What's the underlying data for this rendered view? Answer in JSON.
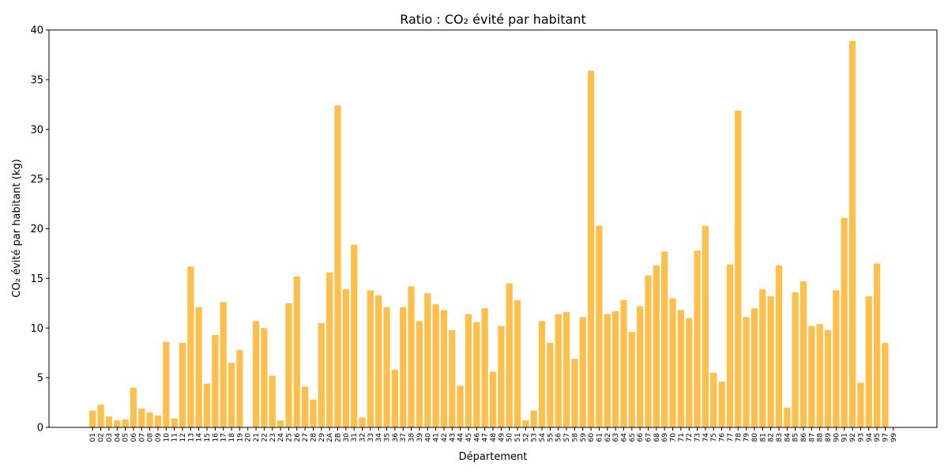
{
  "chart_data": {
    "type": "bar",
    "title": "Ratio : CO₂ évité par habitant",
    "xlabel": "Département",
    "ylabel": "CO₂ évité par habitant (kg)",
    "ylim": [
      0,
      40
    ],
    "yticks": [
      0,
      5,
      10,
      15,
      20,
      25,
      30,
      35,
      40
    ],
    "grid": false,
    "bar_color": "#ffbf4d",
    "categories": [
      "01",
      "02",
      "03",
      "04",
      "05",
      "06",
      "07",
      "08",
      "09",
      "10",
      "11",
      "12",
      "13",
      "14",
      "15",
      "16",
      "17",
      "18",
      "19",
      "20",
      "21",
      "22",
      "23",
      "24",
      "25",
      "26",
      "27",
      "28",
      "29",
      "2A",
      "2B",
      "30",
      "31",
      "32",
      "33",
      "34",
      "35",
      "36",
      "37",
      "38",
      "39",
      "40",
      "41",
      "42",
      "43",
      "44",
      "45",
      "46",
      "47",
      "48",
      "49",
      "50",
      "51",
      "52",
      "53",
      "54",
      "55",
      "56",
      "57",
      "58",
      "59",
      "60",
      "61",
      "62",
      "63",
      "64",
      "65",
      "66",
      "67",
      "68",
      "69",
      "70",
      "71",
      "72",
      "73",
      "74",
      "75",
      "76",
      "77",
      "78",
      "79",
      "80",
      "81",
      "82",
      "83",
      "84",
      "85",
      "86",
      "87",
      "88",
      "89",
      "90",
      "91",
      "92",
      "93",
      "94",
      "95",
      "97",
      "99"
    ],
    "values": [
      1.7,
      2.3,
      1.1,
      0.7,
      0.8,
      4.0,
      1.9,
      1.5,
      1.2,
      8.6,
      0.9,
      8.5,
      16.2,
      12.1,
      4.4,
      9.3,
      12.6,
      6.5,
      7.8,
      0,
      10.7,
      10.0,
      5.2,
      0.7,
      12.5,
      15.2,
      4.1,
      2.8,
      10.5,
      15.6,
      32.4,
      13.9,
      18.4,
      1.0,
      13.8,
      13.3,
      12.1,
      5.8,
      12.1,
      14.2,
      10.7,
      13.5,
      12.4,
      11.8,
      9.8,
      4.2,
      11.4,
      10.6,
      12.0,
      5.6,
      10.2,
      14.5,
      12.8,
      0.7,
      1.7,
      10.7,
      8.5,
      11.4,
      11.6,
      6.9,
      11.1,
      35.9,
      20.3,
      11.4,
      11.7,
      12.8,
      9.6,
      12.2,
      15.3,
      16.3,
      17.7,
      13.0,
      11.8,
      11.0,
      17.8,
      20.3,
      5.5,
      4.6,
      16.4,
      31.9,
      11.1,
      12.0,
      13.9,
      13.2,
      16.3,
      2.0,
      13.6,
      14.7,
      10.2,
      10.4,
      9.8,
      13.8,
      21.1,
      38.9,
      4.5,
      13.2,
      16.5,
      8.5,
      0
    ]
  }
}
